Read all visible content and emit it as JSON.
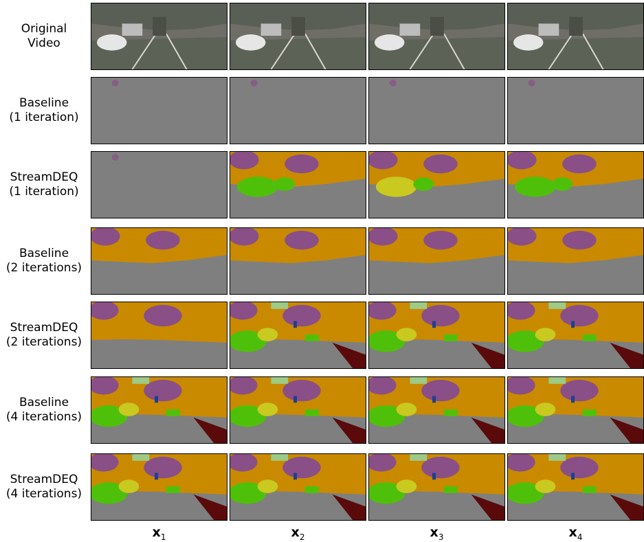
{
  "rows": [
    {
      "line1": "Original",
      "line2": "Video",
      "kind": "video"
    },
    {
      "line1": "Baseline",
      "line2": "(1 iteration)",
      "kind": "blank"
    },
    {
      "line1": "StreamDEQ",
      "line2": "(1 iteration)",
      "kind": "partial"
    },
    {
      "line1": "Baseline",
      "line2": "(2 iterations)",
      "kind": "partial"
    },
    {
      "line1": "StreamDEQ",
      "line2": "(2 iterations)",
      "kind": "full"
    },
    {
      "line1": "Baseline",
      "line2": "(4 iterations)",
      "kind": "full"
    },
    {
      "line1": "StreamDEQ",
      "line2": "(4 iterations)",
      "kind": "full"
    }
  ],
  "columns": [
    {
      "base": "x",
      "sub": "1"
    },
    {
      "base": "x",
      "sub": "2"
    },
    {
      "base": "x",
      "sub": "3"
    },
    {
      "base": "x",
      "sub": "4"
    }
  ],
  "colors": {
    "road": "#7f7f7f",
    "building": "#c98a00",
    "sky": "#8a4f86",
    "vegetation": "#4fc00a",
    "terrain": "#c9c91f",
    "sidewalk": "#5a0a0a",
    "car": "#1f3f8f",
    "pole": "#93d9a8"
  }
}
